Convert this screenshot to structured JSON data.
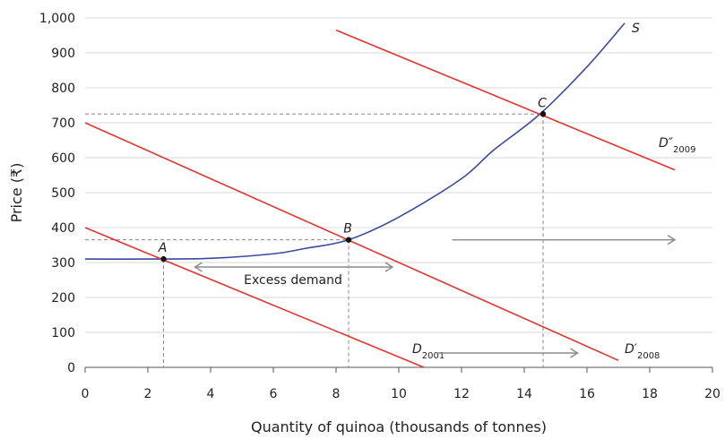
{
  "chart_data": {
    "type": "line",
    "xlabel": "Quantity of quinoa (thousands of tonnes)",
    "ylabel": "Price (₹)",
    "xlim": [
      0,
      20
    ],
    "ylim": [
      0,
      1000
    ],
    "xticks": [
      "0",
      "2",
      "4",
      "6",
      "8",
      "10",
      "12",
      "14",
      "16",
      "18",
      "20"
    ],
    "yticks": [
      "0",
      "100",
      "200",
      "300",
      "400",
      "500",
      "600",
      "700",
      "800",
      "900",
      "1,000"
    ],
    "grid": "horizontal",
    "series": [
      {
        "name": "S",
        "color": "#3a4aa0",
        "points": [
          [
            0,
            310
          ],
          [
            2,
            310
          ],
          [
            4,
            312
          ],
          [
            6,
            325
          ],
          [
            7,
            340
          ],
          [
            8.4,
            365
          ],
          [
            10,
            430
          ],
          [
            12,
            540
          ],
          [
            13,
            620
          ],
          [
            14.5,
            725
          ],
          [
            16,
            860
          ],
          [
            17.2,
            985
          ]
        ]
      },
      {
        "name": "D",
        "sub": "2001",
        "color": "#e3342f",
        "points": [
          [
            0,
            400
          ],
          [
            10.8,
            0
          ]
        ]
      },
      {
        "name": "D′",
        "sub": "2008",
        "color": "#e3342f",
        "points": [
          [
            0,
            700
          ],
          [
            17,
            20
          ]
        ]
      },
      {
        "name": "D″",
        "sub": "2009",
        "color": "#e3342f",
        "points": [
          [
            8,
            965
          ],
          [
            18.8,
            565
          ]
        ]
      }
    ],
    "points": [
      {
        "label": "A",
        "x": 2.5,
        "y": 310
      },
      {
        "label": "B",
        "x": 8.4,
        "y": 365
      },
      {
        "label": "C",
        "x": 14.6,
        "y": 725
      }
    ],
    "annotations": {
      "excess_demand": "Excess demand"
    },
    "colors": {
      "supply": "#3a4aa0",
      "demand": "#e3342f",
      "arrow": "#8a8a8a",
      "grid": "#d8d8d8"
    }
  }
}
